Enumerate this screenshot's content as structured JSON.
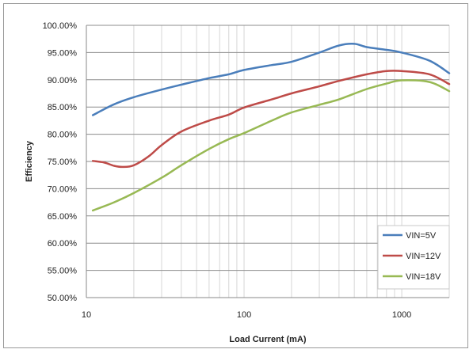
{
  "chart_data": {
    "type": "line",
    "xlabel": "Load Current (mA)",
    "ylabel": "Efficiency",
    "x_scale": "log",
    "xlim": [
      10,
      2000
    ],
    "ylim": [
      50,
      100
    ],
    "grid": true,
    "legend_position": "bottom-right",
    "x_tick_labels": [
      "10",
      "100",
      "1000"
    ],
    "y_tick_labels": [
      "50.00%",
      "55.00%",
      "60.00%",
      "65.00%",
      "70.00%",
      "75.00%",
      "80.00%",
      "85.00%",
      "90.00%",
      "95.00%",
      "100.00%"
    ],
    "series": [
      {
        "name": "VIN=5V",
        "color": "#4a7ebb",
        "x": [
          11,
          15,
          20,
          30,
          40,
          60,
          80,
          100,
          150,
          200,
          300,
          400,
          500,
          600,
          800,
          1000,
          1500,
          2000
        ],
        "y": [
          83.5,
          85.5,
          86.8,
          88.2,
          89.1,
          90.3,
          91.0,
          91.8,
          92.7,
          93.3,
          95.0,
          96.3,
          96.6,
          96.0,
          95.5,
          95.0,
          93.5,
          91.2
        ]
      },
      {
        "name": "VIN=12V",
        "color": "#be4b48",
        "x": [
          11,
          13,
          15,
          17,
          20,
          25,
          30,
          40,
          60,
          80,
          100,
          150,
          200,
          300,
          400,
          600,
          800,
          1000,
          1500,
          2000
        ],
        "y": [
          75.1,
          74.8,
          74.2,
          74.0,
          74.3,
          76.0,
          78.0,
          80.5,
          82.5,
          83.6,
          84.9,
          86.4,
          87.5,
          88.8,
          89.8,
          91.0,
          91.6,
          91.6,
          91.0,
          89.2
        ]
      },
      {
        "name": "VIN=18V",
        "color": "#98b954",
        "x": [
          11,
          15,
          20,
          30,
          40,
          60,
          80,
          100,
          150,
          200,
          300,
          400,
          600,
          800,
          1000,
          1500,
          2000
        ],
        "y": [
          66.0,
          67.5,
          69.2,
          72.0,
          74.3,
          77.3,
          79.1,
          80.2,
          82.5,
          84.0,
          85.4,
          86.4,
          88.3,
          89.3,
          89.9,
          89.6,
          87.9
        ]
      }
    ]
  }
}
